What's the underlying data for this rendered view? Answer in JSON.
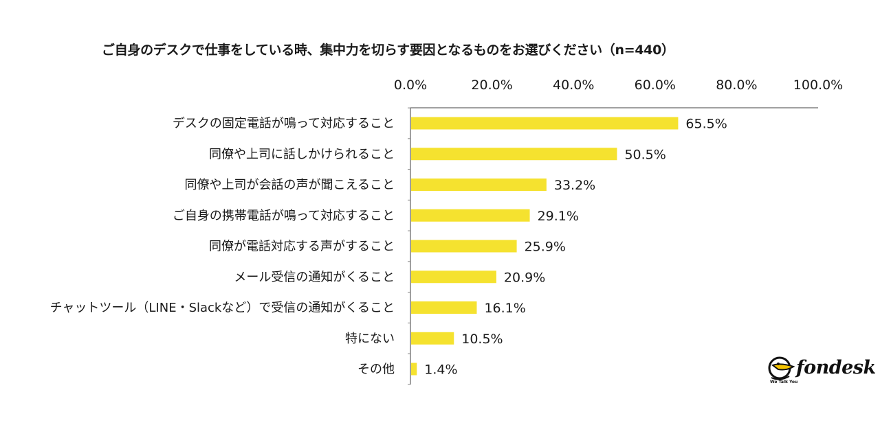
{
  "colors": {
    "bar": "#F5E22F",
    "axis": "#808080",
    "text": "#1a1a1a"
  },
  "chart_data": {
    "type": "bar",
    "orientation": "horizontal",
    "title": "ご自身のデスクで仕事をしている時、集中力を切らす要因となるものをお選びください（n=440）",
    "xlim": [
      0,
      100
    ],
    "ticks": [
      "0.0%",
      "20.0%",
      "40.0%",
      "60.0%",
      "80.0%",
      "100.0%"
    ],
    "tick_values": [
      0,
      20,
      40,
      60,
      80,
      100
    ],
    "grid": false,
    "categories": [
      "デスクの固定電話が鳴って対応すること",
      "同僚や上司に話しかけられること",
      "同僚や上司が会話の声が聞こえること",
      "ご自身の携帯電話が鳴って対応すること",
      "同僚が電話対応する声がすること",
      "メール受信の通知がくること",
      "チャットツール（LINE・Slackなど）で受信の通知がくること",
      "特にない",
      "その他"
    ],
    "values": [
      65.5,
      50.5,
      33.2,
      29.1,
      25.9,
      20.9,
      16.1,
      10.5,
      1.4
    ],
    "value_labels": [
      "65.5%",
      "50.5%",
      "33.2%",
      "29.1%",
      "25.9%",
      "20.9%",
      "16.1%",
      "10.5%",
      "1.4%"
    ]
  },
  "logo": {
    "wordmark": "fondesk",
    "tagline": "We Talk You Work",
    "icon": "pelican-icon"
  }
}
